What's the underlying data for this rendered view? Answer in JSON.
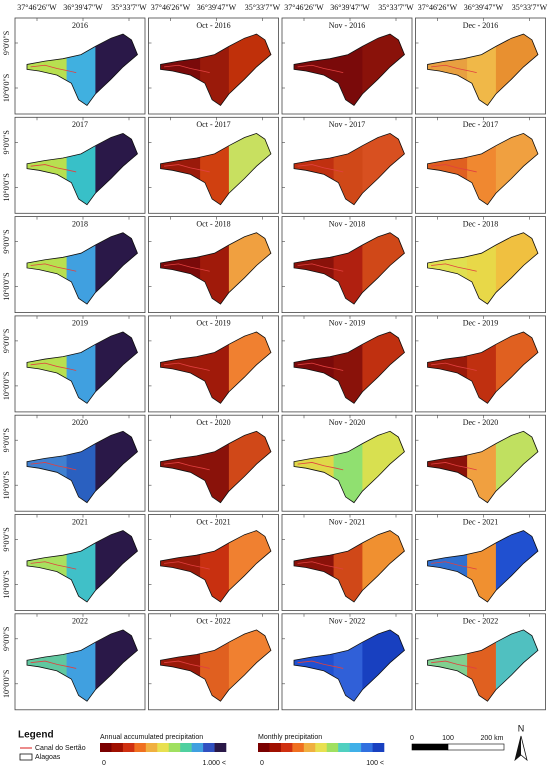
{
  "lon_labels": [
    "37°46'26\"W",
    "36°39'47\"W",
    "35°33'7\"W"
  ],
  "lat_labels": [
    "9°0'0\"S",
    "10°0'0\"S"
  ],
  "panels": [
    {
      "title": "2016",
      "colors": [
        "#b8e050",
        "#40b0e0",
        "#2a1848"
      ]
    },
    {
      "title": "Oct - 2016",
      "colors": [
        "#7a0a0a",
        "#9a1a0a",
        "#c0300a"
      ]
    },
    {
      "title": "Nov - 2016",
      "colors": [
        "#7a0a0a",
        "#7a0a0a",
        "#8a120a"
      ]
    },
    {
      "title": "Dec - 2016",
      "colors": [
        "#e8a040",
        "#f0b848",
        "#e89030"
      ]
    },
    {
      "title": "2017",
      "colors": [
        "#b8e050",
        "#38c0c8",
        "#2a1848"
      ]
    },
    {
      "title": "Oct - 2017",
      "colors": [
        "#9a1a0a",
        "#d04010",
        "#c8e060"
      ]
    },
    {
      "title": "Nov - 2017",
      "colors": [
        "#c03010",
        "#d04818",
        "#d85020"
      ]
    },
    {
      "title": "Dec - 2017",
      "colors": [
        "#e06020",
        "#f08830",
        "#f0a040"
      ]
    },
    {
      "title": "2018",
      "colors": [
        "#b8e050",
        "#40a0e0",
        "#2a1848"
      ]
    },
    {
      "title": "Oct - 2018",
      "colors": [
        "#7a0a0a",
        "#a01a0a",
        "#f0a040"
      ]
    },
    {
      "title": "Nov - 2018",
      "colors": [
        "#8a120a",
        "#b02010",
        "#d04818"
      ]
    },
    {
      "title": "Dec - 2018",
      "colors": [
        "#e0e050",
        "#e8d848",
        "#f0c040"
      ]
    },
    {
      "title": "2019",
      "colors": [
        "#b8e050",
        "#40a0e0",
        "#2a1848"
      ]
    },
    {
      "title": "Oct - 2019",
      "colors": [
        "#9a1a0a",
        "#a01a0a",
        "#f08030"
      ]
    },
    {
      "title": "Nov - 2019",
      "colors": [
        "#7a0a0a",
        "#8a120a",
        "#c03010"
      ]
    },
    {
      "title": "Dec - 2019",
      "colors": [
        "#9a1a0a",
        "#c03010",
        "#e06020"
      ]
    },
    {
      "title": "2020",
      "colors": [
        "#4080d0",
        "#2a60c0",
        "#2a1848"
      ]
    },
    {
      "title": "Oct - 2020",
      "colors": [
        "#8a120a",
        "#8a120a",
        "#d04818"
      ]
    },
    {
      "title": "Nov - 2020",
      "colors": [
        "#e0d848",
        "#90e070",
        "#d8e050"
      ]
    },
    {
      "title": "Dec - 2020",
      "colors": [
        "#8a120a",
        "#f0a040",
        "#c0e060"
      ]
    },
    {
      "title": "2021",
      "colors": [
        "#a8e060",
        "#40c0c8",
        "#2a1848"
      ]
    },
    {
      "title": "Oct - 2021",
      "colors": [
        "#9a1a0a",
        "#c83010",
        "#f08030"
      ]
    },
    {
      "title": "Nov - 2021",
      "colors": [
        "#8a120a",
        "#d04818",
        "#f09030"
      ]
    },
    {
      "title": "Dec - 2021",
      "colors": [
        "#3070d0",
        "#f09030",
        "#2050d0"
      ]
    },
    {
      "title": "2022",
      "colors": [
        "#60c8a0",
        "#40a0e0",
        "#2a1848"
      ]
    },
    {
      "title": "Oct - 2022",
      "colors": [
        "#9a1a0a",
        "#e06020",
        "#f08030"
      ]
    },
    {
      "title": "Nov - 2022",
      "colors": [
        "#2050d0",
        "#3060d8",
        "#1840c0"
      ]
    },
    {
      "title": "Dec - 2022",
      "colors": [
        "#80d090",
        "#e06020",
        "#50c0c0"
      ]
    }
  ],
  "legend": {
    "title": "Legend",
    "items": [
      {
        "label": "Canal do Sertão",
        "color": "#e04040"
      },
      {
        "label": "Alagoas"
      }
    ]
  },
  "annual_scale": {
    "title": "Annual accumulated precipitation",
    "min_label": "0",
    "max_label": "1.000 <",
    "colors": [
      "#7a0000",
      "#a01000",
      "#d03010",
      "#f07020",
      "#f0b040",
      "#e8e050",
      "#a0e060",
      "#50d0a0",
      "#40a0e0",
      "#3050c0",
      "#2a1848"
    ]
  },
  "monthly_scale": {
    "title": "Monthly precipitation",
    "min_label": "0",
    "max_label": "100 <",
    "colors": [
      "#7a0000",
      "#a01000",
      "#d03010",
      "#f07020",
      "#f0b040",
      "#e8e050",
      "#a0e060",
      "#50d0c0",
      "#40b0e8",
      "#3070e0",
      "#1840c0"
    ]
  },
  "scale_bar": {
    "labels": [
      "0",
      "100",
      "200 km"
    ]
  },
  "north": "N"
}
